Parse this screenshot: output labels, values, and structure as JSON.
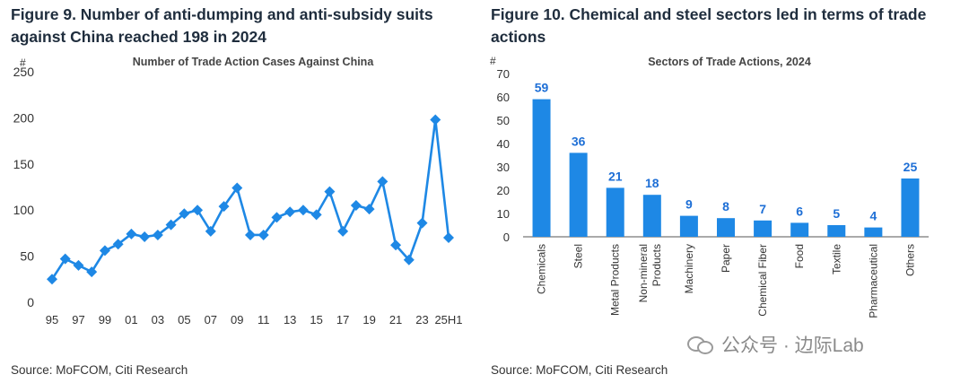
{
  "left": {
    "figure_title": "Figure 9. Number of anti-dumping and anti-subsidy suits against China reached 198 in 2024",
    "source": "Source: MoFCOM, Citi Research"
  },
  "right": {
    "figure_title": "Figure 10. Chemical and steel sectors led in terms of trade actions",
    "source": "Source: MoFCOM, Citi Research"
  },
  "watermark": {
    "text": "公众号 · 边际Lab",
    "icon": "wechat-icon"
  },
  "chart_data": [
    {
      "type": "line",
      "title": "Number of Trade Action Cases Against China",
      "ylabel": "#",
      "ylim": [
        0,
        250
      ],
      "yticks": [
        0,
        50,
        100,
        150,
        200,
        250
      ],
      "x_tick_labels": [
        "95",
        "97",
        "99",
        "01",
        "03",
        "05",
        "07",
        "09",
        "11",
        "13",
        "15",
        "17",
        "19",
        "21",
        "23",
        "25H1"
      ],
      "x": [
        "1995",
        "1996",
        "1997",
        "1998",
        "1999",
        "2000",
        "2001",
        "2002",
        "2003",
        "2004",
        "2005",
        "2006",
        "2007",
        "2008",
        "2009",
        "2010",
        "2011",
        "2012",
        "2013",
        "2014",
        "2015",
        "2016",
        "2017",
        "2018",
        "2019",
        "2020",
        "2021",
        "2022",
        "2023",
        "2024",
        "2025H1"
      ],
      "values": [
        25,
        47,
        40,
        33,
        56,
        63,
        74,
        71,
        73,
        84,
        96,
        100,
        77,
        104,
        124,
        73,
        73,
        92,
        98,
        100,
        95,
        120,
        77,
        105,
        101,
        131,
        62,
        46,
        86,
        198,
        70
      ],
      "color": "#1e88e5",
      "grid": false
    },
    {
      "type": "bar",
      "title": "Sectors of Trade Actions, 2024",
      "ylabel": "#",
      "ylim": [
        0,
        70
      ],
      "yticks": [
        0,
        10,
        20,
        30,
        40,
        50,
        60,
        70
      ],
      "categories": [
        "Chemicals",
        "Steel",
        "Metal Products",
        "Non-mineral Products",
        "Machinery",
        "Paper",
        "Chemical Fiber",
        "Food",
        "Textile",
        "Pharmaceutical",
        "Others"
      ],
      "values": [
        59,
        36,
        21,
        18,
        9,
        8,
        7,
        6,
        5,
        4,
        25
      ],
      "color": "#1e88e5",
      "label_color": "#1e6fd6",
      "grid": false
    }
  ]
}
